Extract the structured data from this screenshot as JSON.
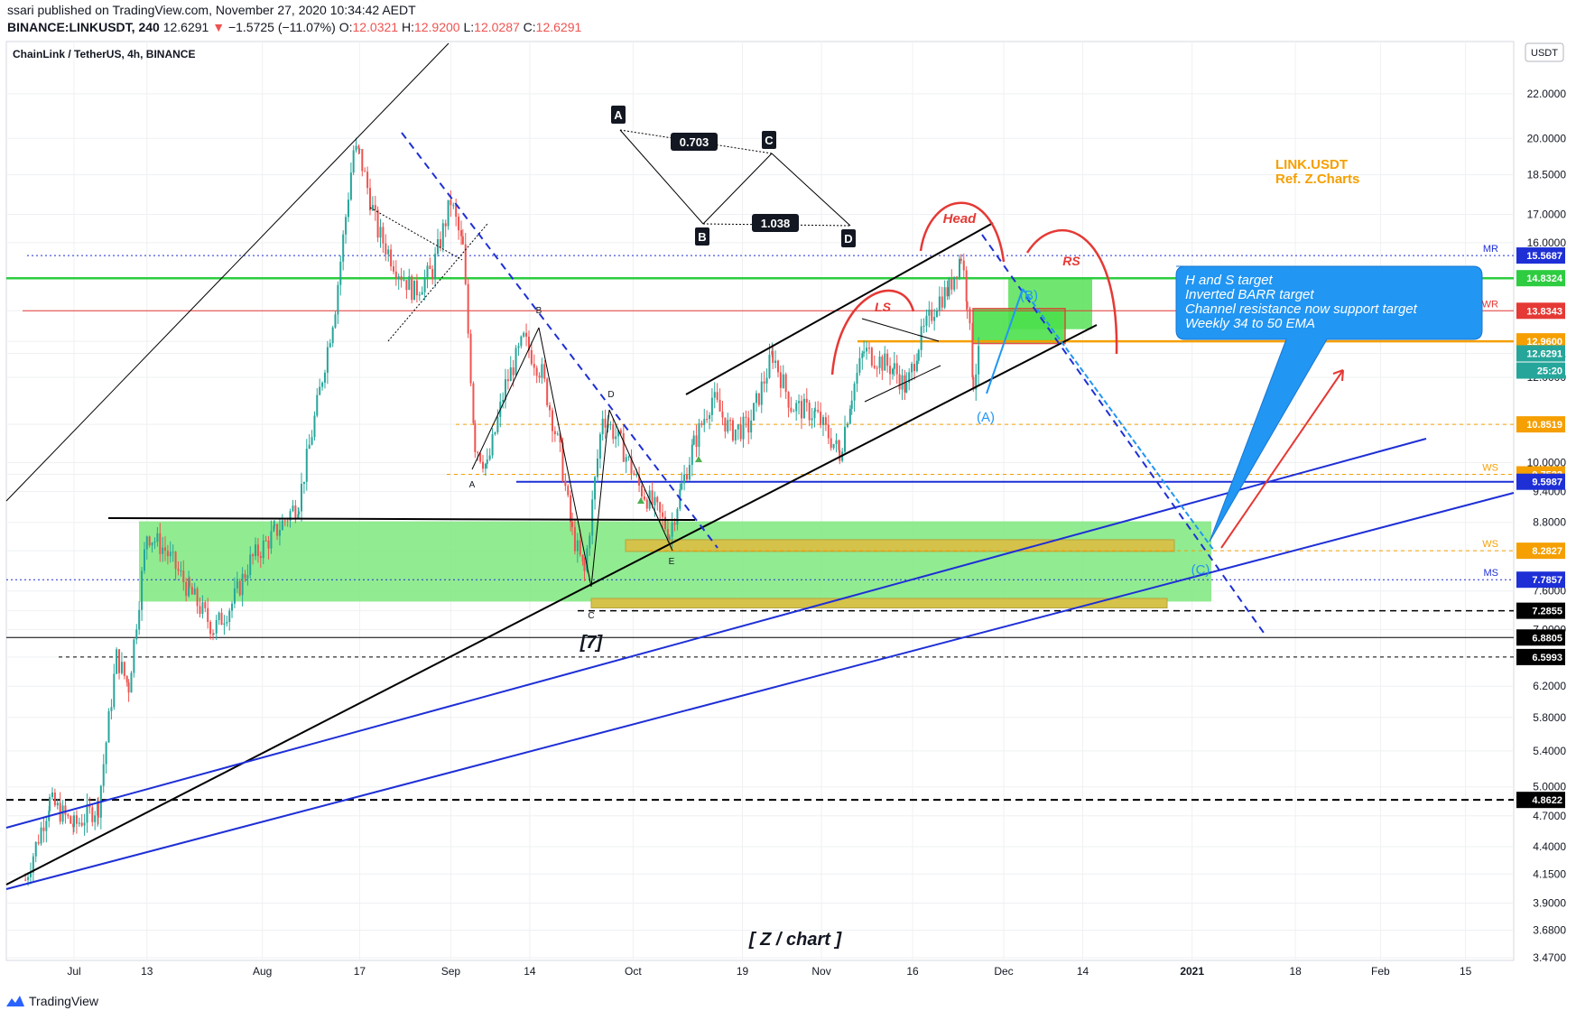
{
  "header": {
    "publish_line": "ssari published on TradingView.com, November 27, 2020 10:34:42 AEDT",
    "symbol": "BINANCE:LINKUSDT, 240",
    "last": "12.6291",
    "change_arrow": "▼",
    "change": "−1.5725 (−11.07%)",
    "o_label": "O:",
    "o": "12.0321",
    "h_label": "H:",
    "h": "12.9200",
    "l_label": "L:",
    "l": "12.0287",
    "c_label": "C:",
    "c": "12.6291"
  },
  "legend_title": "ChainLink / TetherUS, 4h, BINANCE",
  "footer": {
    "brand": "TradingView",
    "logo_icon": "tradingview-logo-icon"
  },
  "colors": {
    "up": "#26a69a",
    "down": "#ef5350",
    "green_zone": "#7ee87e",
    "yellow_zone": "#d4c24a",
    "blue_line": "#1e2fd6",
    "orange": "#f59f00",
    "red": "#e53935",
    "callout": "#2196f3"
  },
  "chart_data": {
    "type": "candlestick",
    "title": "ChainLink / TetherUS, 4h, BINANCE",
    "currency": "USDT",
    "scale": "log",
    "ylim": [
      3.45,
      24.6
    ],
    "price_ticks": [
      "22.0000",
      "20.0000",
      "18.5000",
      "17.0000",
      "16.0000",
      "14.8324",
      "13.8343",
      "12.9600",
      "12.6291",
      "12.0000",
      "10.8519",
      "10.0000",
      "9.7522",
      "9.4000",
      "8.8000",
      "8.2827",
      "7.6000",
      "7.2855",
      "7.0000",
      "6.8805",
      "6.5993",
      "6.2000",
      "5.8000",
      "5.4000",
      "5.0000",
      "4.8622",
      "4.7000",
      "4.4000",
      "4.1500",
      "3.9000",
      "3.6800",
      "3.4700"
    ],
    "x_ticks": [
      "Jul",
      "13",
      "Aug",
      "17",
      "Sep",
      "14",
      "Oct",
      "19",
      "Nov",
      "16",
      "Dec",
      "14",
      "2021",
      "18",
      "Feb",
      "15"
    ],
    "price_series": [
      [
        "Jun 23",
        4.1
      ],
      [
        "Jun 27",
        4.85
      ],
      [
        "Jul 1",
        4.6
      ],
      [
        "Jul 5",
        4.8
      ],
      [
        "Jul 8",
        6.6
      ],
      [
        "Jul 10",
        6.2
      ],
      [
        "Jul 13",
        8.6
      ],
      [
        "Jul 16",
        8.3
      ],
      [
        "Jul 20",
        7.6
      ],
      [
        "Jul 24",
        7.0
      ],
      [
        "Jul 27",
        7.4
      ],
      [
        "Jul 30",
        8.1
      ],
      [
        "Aug 3",
        8.6
      ],
      [
        "Aug 7",
        9.2
      ],
      [
        "Aug 10",
        11.3
      ],
      [
        "Aug 13",
        14.0
      ],
      [
        "Aug 16",
        19.5
      ],
      [
        "Aug 17",
        19.3
      ],
      [
        "Aug 20",
        16.4
      ],
      [
        "Aug 23",
        15.2
      ],
      [
        "Aug 26",
        14.4
      ],
      [
        "Aug 29",
        15.1
      ],
      [
        "Sep 1",
        17.5
      ],
      [
        "Sep 3",
        15.8
      ],
      [
        "Sep 5",
        10.4
      ],
      [
        "Sep 7",
        9.9
      ],
      [
        "Sep 10",
        11.8
      ],
      [
        "Sep 13",
        13.0
      ],
      [
        "Sep 16",
        12.1
      ],
      [
        "Sep 19",
        10.2
      ],
      [
        "Sep 21",
        8.6
      ],
      [
        "Sep 23",
        7.9
      ],
      [
        "Sep 26",
        11.1
      ],
      [
        "Sep 29",
        10.4
      ],
      [
        "Oct 2",
        9.5
      ],
      [
        "Oct 5",
        9.0
      ],
      [
        "Oct 7",
        8.6
      ],
      [
        "Oct 9",
        9.5
      ],
      [
        "Oct 11",
        10.4
      ],
      [
        "Oct 14",
        11.5
      ],
      [
        "Oct 17",
        10.7
      ],
      [
        "Oct 20",
        10.8
      ],
      [
        "Oct 24",
        12.6
      ],
      [
        "Oct 27",
        11.3
      ],
      [
        "Oct 31",
        11.1
      ],
      [
        "Nov 4",
        10.2
      ],
      [
        "Nov 6",
        11.6
      ],
      [
        "Nov 8",
        12.7
      ],
      [
        "Nov 11",
        12.4
      ],
      [
        "Nov 13",
        12.2
      ],
      [
        "Nov 15",
        11.7
      ],
      [
        "Nov 17",
        12.9
      ],
      [
        "Nov 20",
        14.1
      ],
      [
        "Nov 22",
        14.5
      ],
      [
        "Nov 24",
        15.6
      ],
      [
        "Nov 25",
        14.2
      ],
      [
        "Nov 26",
        11.9
      ],
      [
        "Nov 27",
        12.63
      ]
    ],
    "horizontal_levels": [
      {
        "price": 15.5687,
        "label": "MR",
        "tag": "15.5687",
        "color": "#1e2fd6"
      },
      {
        "price": 14.8324,
        "tag": "14.8324",
        "color": "#2ecc40"
      },
      {
        "price": 13.8343,
        "label": "WR",
        "tag": "13.8343",
        "color": "#e53935"
      },
      {
        "price": 12.96,
        "tag": "12.9600",
        "color": "#f59f00"
      },
      {
        "price": 10.8519,
        "tag": "10.8519",
        "color": "#f59f00"
      },
      {
        "price": 9.7522,
        "label": "WS",
        "tag": "9.7522",
        "color": "#f59f00"
      },
      {
        "price": 9.5987,
        "tag": "9.5987",
        "color": "#1e2fd6"
      },
      {
        "price": 8.2827,
        "label": "WS",
        "tag": "8.2827",
        "color": "#f59f00"
      },
      {
        "price": 7.7857,
        "label": "MS",
        "tag": "7.7857",
        "color": "#1e2fd6"
      },
      {
        "price": 7.2855,
        "tag": "7.2855",
        "color": "#000000"
      },
      {
        "price": 6.8805,
        "tag": "6.8805",
        "color": "#000000"
      },
      {
        "price": 6.5993,
        "tag": "6.5993",
        "color": "#000000"
      },
      {
        "price": 4.8622,
        "tag": "4.8622",
        "color": "#000000"
      }
    ],
    "current_price_tag": "12.6291",
    "countdown_tag": "25:20",
    "pattern_labels": {
      "harmonic": [
        "A",
        "B",
        "C",
        "D"
      ],
      "ratios": [
        "0.703",
        "1.038"
      ],
      "abcde": [
        "A",
        "B",
        "C",
        "D",
        "E"
      ],
      "hs": [
        "LS",
        "Head",
        "RS"
      ],
      "elliott": [
        "(A)",
        "(B)",
        "(C)"
      ],
      "count": "[7]"
    },
    "annotations": {
      "ticker_note_1": "LINK.USDT",
      "ticker_note_2": "Ref. Z.Charts",
      "callout": [
        "H and S target",
        "Inverted BARR target",
        "Channel resistance now support target",
        "Weekly 34 to 50 EMA"
      ],
      "watermark": "[ Z / chart ]"
    },
    "grid": true
  }
}
